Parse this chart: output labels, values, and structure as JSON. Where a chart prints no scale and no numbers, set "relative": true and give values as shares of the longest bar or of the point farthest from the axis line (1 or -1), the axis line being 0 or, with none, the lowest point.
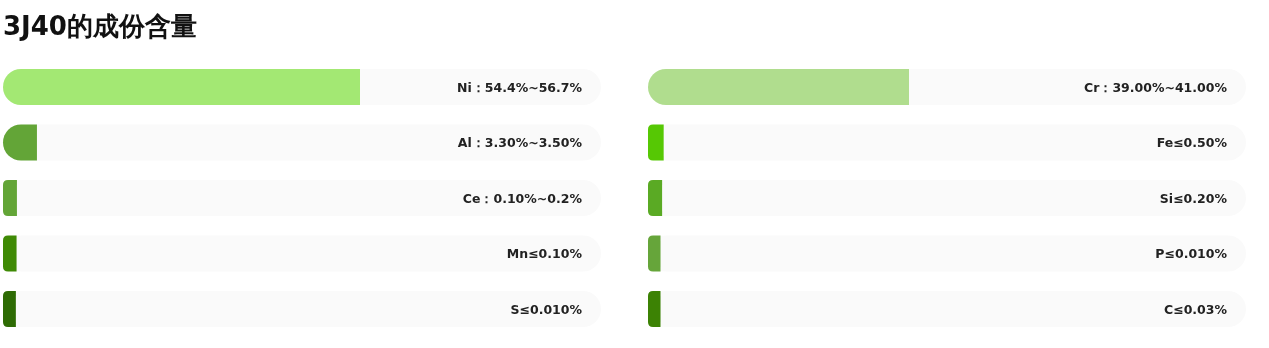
{
  "chart_data": [
    {
      "type": "bar",
      "orientation": "horizontal",
      "relative": true,
      "title": "3J40的成份含量",
      "categories": [
        "Ni：54.4%~56.7%",
        "Al：3.30%~3.50%",
        "Ce：0.10%~0.2%",
        "Mn≤0.10%",
        "S≤0.010%"
      ],
      "values": [
        1,
        0.095,
        0.039,
        0.038,
        0.036
      ],
      "colors": [
        "#a3e873",
        "#63a537",
        "#63a537",
        "#3f8a05",
        "#2e6b04"
      ]
    },
    {
      "type": "bar",
      "orientation": "horizontal",
      "relative": true,
      "categories": [
        "Cr：39.00%~41.00%",
        "Fe≤0.50%",
        "Si≤0.20%",
        "P≤0.010%",
        "C≤0.03%"
      ],
      "values": [
        1,
        0.06,
        0.054,
        0.048,
        0.048
      ],
      "colors": [
        "#b0dd8e",
        "#56c804",
        "#5aaa24",
        "#66a53a",
        "#3c8204"
      ]
    }
  ]
}
